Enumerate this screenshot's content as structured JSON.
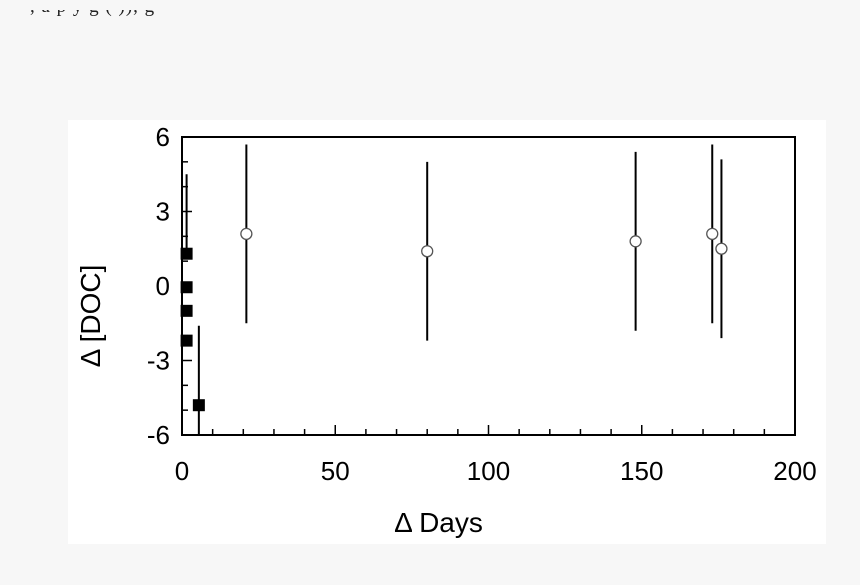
{
  "page": {
    "top_text": ", a p           y   g   (     )),     g"
  },
  "chart_data": {
    "type": "scatter",
    "title": "",
    "xlabel": "Δ Days",
    "ylabel": "Δ [DOC]",
    "xlim": [
      0,
      200
    ],
    "ylim": [
      -6,
      6
    ],
    "xticks": [
      0,
      50,
      100,
      150,
      200
    ],
    "xtick_labels": [
      "0",
      "50",
      "100",
      "150",
      "200"
    ],
    "yticks": [
      -6,
      -3,
      0,
      3,
      6
    ],
    "ytick_labels": [
      "-6",
      "-3",
      "0",
      "3",
      "6"
    ],
    "grid": false,
    "series": [
      {
        "marker": "square-filled",
        "color": "#000000",
        "points": [
          {
            "x": 1.5,
            "y": 1.3,
            "ylow": 1.3,
            "yhigh": 4.5
          },
          {
            "x": 1.5,
            "y": -0.05,
            "ylow": -0.05,
            "yhigh": -0.05
          },
          {
            "x": 1.5,
            "y": -1.0,
            "ylow": -1.0,
            "yhigh": -1.0
          },
          {
            "x": 1.5,
            "y": -2.2,
            "ylow": -2.2,
            "yhigh": -2.2
          },
          {
            "x": 5.5,
            "y": -4.8,
            "ylow": -6.0,
            "yhigh": -1.6
          }
        ]
      },
      {
        "marker": "circle-open",
        "color": "#000000",
        "points": [
          {
            "x": 21,
            "y": 2.1,
            "ylow": -1.5,
            "yhigh": 5.7
          },
          {
            "x": 80,
            "y": 1.4,
            "ylow": -2.2,
            "yhigh": 5.0
          },
          {
            "x": 148,
            "y": 1.8,
            "ylow": -1.8,
            "yhigh": 5.4
          },
          {
            "x": 173,
            "y": 2.1,
            "ylow": -1.5,
            "yhigh": 5.7
          },
          {
            "x": 176,
            "y": 1.5,
            "ylow": -2.1,
            "yhigh": 5.1
          }
        ]
      }
    ]
  }
}
